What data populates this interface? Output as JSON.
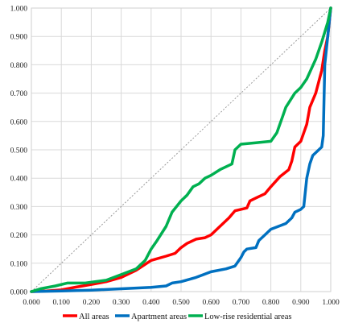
{
  "chart_data": {
    "type": "line",
    "title": "",
    "xlabel": "",
    "ylabel": "",
    "xlim": [
      0,
      1
    ],
    "ylim": [
      0,
      1
    ],
    "x_ticks": [
      "0.000",
      "0.100",
      "0.200",
      "0.300",
      "0.400",
      "0.500",
      "0.600",
      "0.700",
      "0.800",
      "0.900",
      "1.000"
    ],
    "y_ticks": [
      "0.000",
      "0.100",
      "0.200",
      "0.300",
      "0.400",
      "0.500",
      "0.600",
      "0.700",
      "0.800",
      "0.900",
      "1.000"
    ],
    "grid": true,
    "legend_position": "bottom",
    "diagonal_reference": true,
    "series": [
      {
        "name": "All areas",
        "color": "#ff0000",
        "points": [
          [
            0.0,
            0.0
          ],
          [
            0.05,
            0.002
          ],
          [
            0.1,
            0.006
          ],
          [
            0.15,
            0.016
          ],
          [
            0.2,
            0.025
          ],
          [
            0.25,
            0.035
          ],
          [
            0.3,
            0.05
          ],
          [
            0.35,
            0.075
          ],
          [
            0.4,
            0.11
          ],
          [
            0.45,
            0.125
          ],
          [
            0.48,
            0.135
          ],
          [
            0.5,
            0.155
          ],
          [
            0.52,
            0.17
          ],
          [
            0.55,
            0.185
          ],
          [
            0.58,
            0.19
          ],
          [
            0.6,
            0.2
          ],
          [
            0.63,
            0.23
          ],
          [
            0.66,
            0.26
          ],
          [
            0.68,
            0.285
          ],
          [
            0.7,
            0.29
          ],
          [
            0.72,
            0.295
          ],
          [
            0.73,
            0.32
          ],
          [
            0.75,
            0.33
          ],
          [
            0.78,
            0.345
          ],
          [
            0.8,
            0.37
          ],
          [
            0.83,
            0.405
          ],
          [
            0.86,
            0.43
          ],
          [
            0.87,
            0.46
          ],
          [
            0.88,
            0.51
          ],
          [
            0.9,
            0.53
          ],
          [
            0.92,
            0.59
          ],
          [
            0.93,
            0.65
          ],
          [
            0.95,
            0.7
          ],
          [
            0.96,
            0.74
          ],
          [
            0.97,
            0.78
          ],
          [
            0.98,
            0.85
          ],
          [
            0.99,
            0.9
          ],
          [
            1.0,
            1.0
          ]
        ]
      },
      {
        "name": "Apartment areas",
        "color": "#0070c0",
        "points": [
          [
            0.0,
            0.0
          ],
          [
            0.1,
            0.002
          ],
          [
            0.2,
            0.005
          ],
          [
            0.3,
            0.01
          ],
          [
            0.4,
            0.015
          ],
          [
            0.45,
            0.02
          ],
          [
            0.47,
            0.03
          ],
          [
            0.5,
            0.035
          ],
          [
            0.55,
            0.05
          ],
          [
            0.6,
            0.07
          ],
          [
            0.65,
            0.08
          ],
          [
            0.68,
            0.09
          ],
          [
            0.7,
            0.12
          ],
          [
            0.71,
            0.14
          ],
          [
            0.72,
            0.15
          ],
          [
            0.75,
            0.155
          ],
          [
            0.76,
            0.18
          ],
          [
            0.78,
            0.2
          ],
          [
            0.8,
            0.22
          ],
          [
            0.85,
            0.24
          ],
          [
            0.87,
            0.26
          ],
          [
            0.88,
            0.28
          ],
          [
            0.9,
            0.29
          ],
          [
            0.91,
            0.3
          ],
          [
            0.92,
            0.4
          ],
          [
            0.93,
            0.45
          ],
          [
            0.94,
            0.48
          ],
          [
            0.96,
            0.5
          ],
          [
            0.97,
            0.51
          ],
          [
            0.975,
            0.55
          ],
          [
            0.98,
            0.8
          ],
          [
            0.99,
            0.9
          ],
          [
            1.0,
            1.0
          ]
        ]
      },
      {
        "name": "Low-rise residential areas",
        "color": "#00b050",
        "points": [
          [
            0.0,
            0.0
          ],
          [
            0.03,
            0.01
          ],
          [
            0.08,
            0.02
          ],
          [
            0.12,
            0.03
          ],
          [
            0.18,
            0.03
          ],
          [
            0.25,
            0.04
          ],
          [
            0.3,
            0.06
          ],
          [
            0.35,
            0.08
          ],
          [
            0.38,
            0.11
          ],
          [
            0.4,
            0.15
          ],
          [
            0.42,
            0.18
          ],
          [
            0.45,
            0.23
          ],
          [
            0.47,
            0.28
          ],
          [
            0.5,
            0.32
          ],
          [
            0.52,
            0.34
          ],
          [
            0.54,
            0.37
          ],
          [
            0.56,
            0.38
          ],
          [
            0.58,
            0.4
          ],
          [
            0.6,
            0.41
          ],
          [
            0.63,
            0.43
          ],
          [
            0.65,
            0.44
          ],
          [
            0.67,
            0.45
          ],
          [
            0.68,
            0.5
          ],
          [
            0.7,
            0.52
          ],
          [
            0.75,
            0.525
          ],
          [
            0.8,
            0.53
          ],
          [
            0.82,
            0.56
          ],
          [
            0.84,
            0.62
          ],
          [
            0.85,
            0.65
          ],
          [
            0.88,
            0.7
          ],
          [
            0.9,
            0.72
          ],
          [
            0.92,
            0.75
          ],
          [
            0.95,
            0.82
          ],
          [
            0.97,
            0.88
          ],
          [
            0.99,
            0.95
          ],
          [
            1.0,
            1.0
          ]
        ]
      }
    ]
  }
}
